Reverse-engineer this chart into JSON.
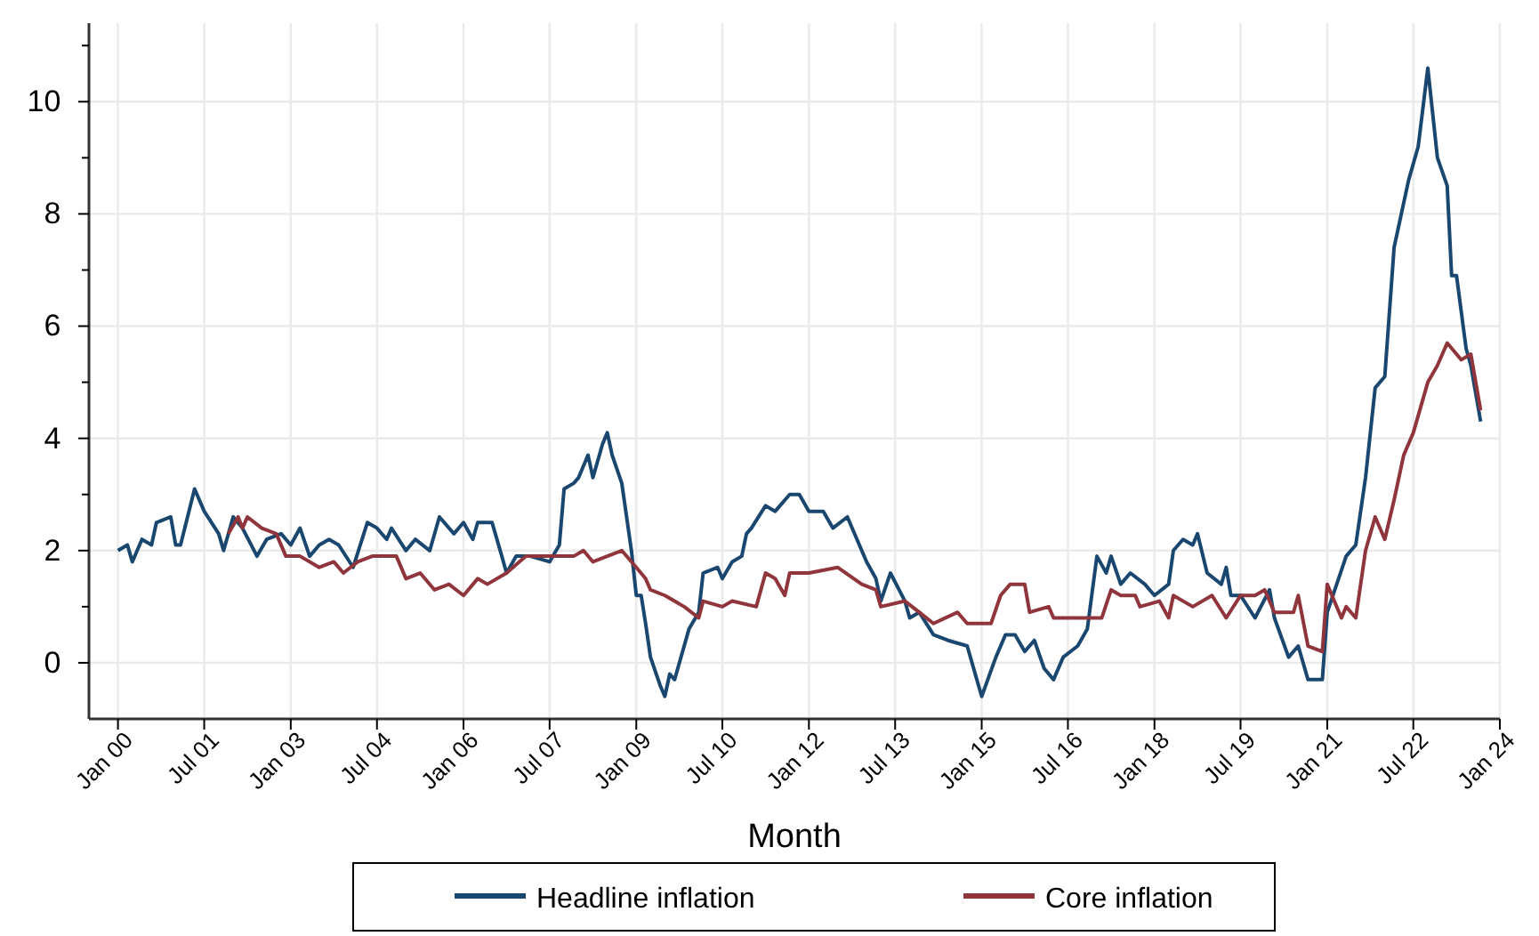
{
  "chart_data": {
    "type": "line",
    "xlabel": "Month",
    "grid": true,
    "legend": "bottom",
    "marker": "none",
    "line_style": "solid",
    "xlim": [
      "1999-07",
      "2024-01"
    ],
    "xticks": [
      {
        "value": "2000-01",
        "label": "Jan 00"
      },
      {
        "value": "2001-07",
        "label": "Jul 01"
      },
      {
        "value": "2003-01",
        "label": "Jan 03"
      },
      {
        "value": "2004-07",
        "label": "Jul 04"
      },
      {
        "value": "2006-01",
        "label": "Jan 06"
      },
      {
        "value": "2007-07",
        "label": "Jul 07"
      },
      {
        "value": "2009-01",
        "label": "Jan 09"
      },
      {
        "value": "2010-07",
        "label": "Jul 10"
      },
      {
        "value": "2012-01",
        "label": "Jan 12"
      },
      {
        "value": "2013-07",
        "label": "Jul 13"
      },
      {
        "value": "2015-01",
        "label": "Jan 15"
      },
      {
        "value": "2016-07",
        "label": "Jul 16"
      },
      {
        "value": "2018-01",
        "label": "Jan 18"
      },
      {
        "value": "2019-07",
        "label": "Jul 19"
      },
      {
        "value": "2021-01",
        "label": "Jan 21"
      },
      {
        "value": "2022-07",
        "label": "Jul 22"
      },
      {
        "value": "2024-01",
        "label": "Jan 24"
      }
    ],
    "ylim": [
      -1,
      11.4
    ],
    "yticks": [
      0,
      {
        "value": 1,
        "label": null
      },
      2,
      {
        "value": 3,
        "label": null
      },
      4,
      {
        "value": 5,
        "label": null
      },
      6,
      {
        "value": 7,
        "label": null
      },
      8,
      {
        "value": 9,
        "label": null
      },
      10,
      {
        "value": 11,
        "label": null
      }
    ],
    "series": [
      {
        "name": "Headline inflation",
        "color": "#1a476f",
        "x": [
          "2000-01",
          "2000-03",
          "2000-04",
          "2000-06",
          "2000-08",
          "2000-09",
          "2000-12",
          "2001-01",
          "2001-02",
          "2001-05",
          "2001-07",
          "2001-10",
          "2001-11",
          "2002-01",
          "2002-03",
          "2002-06",
          "2002-08",
          "2002-11",
          "2003-01",
          "2003-03",
          "2003-05",
          "2003-07",
          "2003-09",
          "2003-11",
          "2004-02",
          "2004-05",
          "2004-07",
          "2004-09",
          "2004-10",
          "2005-01",
          "2005-03",
          "2005-06",
          "2005-08",
          "2005-11",
          "2006-01",
          "2006-03",
          "2006-04",
          "2006-07",
          "2006-09",
          "2006-10",
          "2006-12",
          "2007-02",
          "2007-03",
          "2007-07",
          "2007-09",
          "2007-10",
          "2007-12",
          "2008-01",
          "2008-03",
          "2008-04",
          "2008-06",
          "2008-07",
          "2008-08",
          "2008-10",
          "2008-12",
          "2009-01",
          "2009-02",
          "2009-03",
          "2009-04",
          "2009-06",
          "2009-07",
          "2009-08",
          "2009-09",
          "2009-12",
          "2010-02",
          "2010-03",
          "2010-06",
          "2010-07",
          "2010-09",
          "2010-11",
          "2010-12",
          "2011-01",
          "2011-04",
          "2011-06",
          "2011-09",
          "2011-11",
          "2012-01",
          "2012-04",
          "2012-06",
          "2012-09",
          "2012-11",
          "2013-01",
          "2013-03",
          "2013-04",
          "2013-06",
          "2013-09",
          "2013-10",
          "2013-12",
          "2014-03",
          "2014-06",
          "2014-10",
          "2015-01",
          "2015-04",
          "2015-06",
          "2015-08",
          "2015-10",
          "2015-12",
          "2016-02",
          "2016-04",
          "2016-06",
          "2016-09",
          "2016-11",
          "2017-01",
          "2017-03",
          "2017-04",
          "2017-06",
          "2017-08",
          "2017-11",
          "2018-01",
          "2018-04",
          "2018-05",
          "2018-07",
          "2018-09",
          "2018-10",
          "2018-12",
          "2019-03",
          "2019-04",
          "2019-05",
          "2019-07",
          "2019-10",
          "2020-01",
          "2020-02",
          "2020-05",
          "2020-07",
          "2020-09",
          "2020-12",
          "2021-01",
          "2021-05",
          "2021-07",
          "2021-09",
          "2021-11",
          "2022-01",
          "2022-03",
          "2022-06",
          "2022-08",
          "2022-10",
          "2022-12",
          "2023-02",
          "2023-03",
          "2023-04",
          "2023-06",
          "2023-07",
          "2023-09"
        ],
        "values": [
          2.0,
          2.1,
          1.8,
          2.2,
          2.1,
          2.5,
          2.6,
          2.1,
          2.1,
          3.1,
          2.7,
          2.3,
          2.0,
          2.6,
          2.4,
          1.9,
          2.2,
          2.3,
          2.1,
          2.4,
          1.9,
          2.1,
          2.2,
          2.1,
          1.7,
          2.5,
          2.4,
          2.2,
          2.4,
          2.0,
          2.2,
          2.0,
          2.6,
          2.3,
          2.5,
          2.2,
          2.5,
          2.5,
          1.9,
          1.6,
          1.9,
          1.9,
          1.9,
          1.8,
          2.1,
          3.1,
          3.2,
          3.3,
          3.7,
          3.3,
          3.9,
          4.1,
          3.7,
          3.2,
          2.0,
          1.2,
          1.2,
          0.7,
          0.1,
          -0.4,
          -0.6,
          -0.2,
          -0.3,
          0.6,
          0.9,
          1.6,
          1.7,
          1.5,
          1.8,
          1.9,
          2.3,
          2.4,
          2.8,
          2.7,
          3.0,
          3.0,
          2.7,
          2.7,
          2.4,
          2.6,
          2.2,
          1.8,
          1.5,
          1.1,
          1.6,
          1.1,
          0.8,
          0.9,
          0.5,
          0.4,
          0.3,
          -0.6,
          0.1,
          0.5,
          0.5,
          0.2,
          0.4,
          -0.1,
          -0.3,
          0.1,
          0.3,
          0.6,
          1.9,
          1.6,
          1.9,
          1.4,
          1.6,
          1.4,
          1.2,
          1.4,
          2.0,
          2.2,
          2.1,
          2.3,
          1.6,
          1.4,
          1.7,
          1.2,
          1.2,
          0.8,
          1.3,
          0.8,
          0.1,
          0.3,
          -0.3,
          -0.3,
          0.9,
          1.9,
          2.1,
          3.3,
          4.9,
          5.1,
          7.4,
          8.6,
          9.2,
          10.6,
          9.0,
          8.5,
          6.9,
          6.9,
          5.6,
          5.3,
          4.3
        ]
      },
      {
        "name": "Core inflation",
        "color": "#90353b",
        "x": [
          "2001-12",
          "2002-02",
          "2002-03",
          "2002-04",
          "2002-07",
          "2002-10",
          "2002-12",
          "2003-03",
          "2003-07",
          "2003-10",
          "2003-12",
          "2004-03",
          "2004-06",
          "2004-11",
          "2005-01",
          "2005-04",
          "2005-07",
          "2005-10",
          "2006-01",
          "2006-04",
          "2006-06",
          "2006-10",
          "2007-02",
          "2007-06",
          "2007-12",
          "2008-02",
          "2008-04",
          "2008-07",
          "2008-10",
          "2009-01",
          "2009-03",
          "2009-04",
          "2009-07",
          "2009-11",
          "2010-02",
          "2010-03",
          "2010-07",
          "2010-09",
          "2011-02",
          "2011-04",
          "2011-06",
          "2011-08",
          "2011-09",
          "2012-01",
          "2012-07",
          "2012-12",
          "2013-03",
          "2013-04",
          "2013-09",
          "2013-12",
          "2014-03",
          "2014-08",
          "2014-10",
          "2015-03",
          "2015-05",
          "2015-07",
          "2015-10",
          "2015-11",
          "2016-03",
          "2016-04",
          "2016-10",
          "2017-02",
          "2017-04",
          "2017-06",
          "2017-09",
          "2017-10",
          "2018-02",
          "2018-04",
          "2018-05",
          "2018-09",
          "2019-01",
          "2019-04",
          "2019-07",
          "2019-10",
          "2019-12",
          "2020-02",
          "2020-06",
          "2020-07",
          "2020-09",
          "2020-12",
          "2021-01",
          "2021-04",
          "2021-05",
          "2021-07",
          "2021-09",
          "2021-11",
          "2022-01",
          "2022-03",
          "2022-05",
          "2022-07",
          "2022-10",
          "2022-12",
          "2023-02",
          "2023-04",
          "2023-05",
          "2023-07",
          "2023-09"
        ],
        "values": [
          2.3,
          2.6,
          2.4,
          2.6,
          2.4,
          2.3,
          1.9,
          1.9,
          1.7,
          1.8,
          1.6,
          1.8,
          1.9,
          1.9,
          1.5,
          1.6,
          1.3,
          1.4,
          1.2,
          1.5,
          1.4,
          1.6,
          1.9,
          1.9,
          1.9,
          2.0,
          1.8,
          1.9,
          2.0,
          1.7,
          1.5,
          1.3,
          1.2,
          1.0,
          0.8,
          1.1,
          1.0,
          1.1,
          1.0,
          1.6,
          1.5,
          1.2,
          1.6,
          1.6,
          1.7,
          1.4,
          1.3,
          1.0,
          1.1,
          0.9,
          0.7,
          0.9,
          0.7,
          0.7,
          1.2,
          1.4,
          1.4,
          0.9,
          1.0,
          0.8,
          0.8,
          0.8,
          1.3,
          1.2,
          1.2,
          1.0,
          1.1,
          0.8,
          1.2,
          1.0,
          1.2,
          0.8,
          1.2,
          1.2,
          1.3,
          0.9,
          0.9,
          1.2,
          0.3,
          0.2,
          1.4,
          0.8,
          1.0,
          0.8,
          2.0,
          2.6,
          2.2,
          2.9,
          3.7,
          4.1,
          5.0,
          5.3,
          5.7,
          5.5,
          5.4,
          5.5,
          4.5
        ]
      }
    ]
  }
}
